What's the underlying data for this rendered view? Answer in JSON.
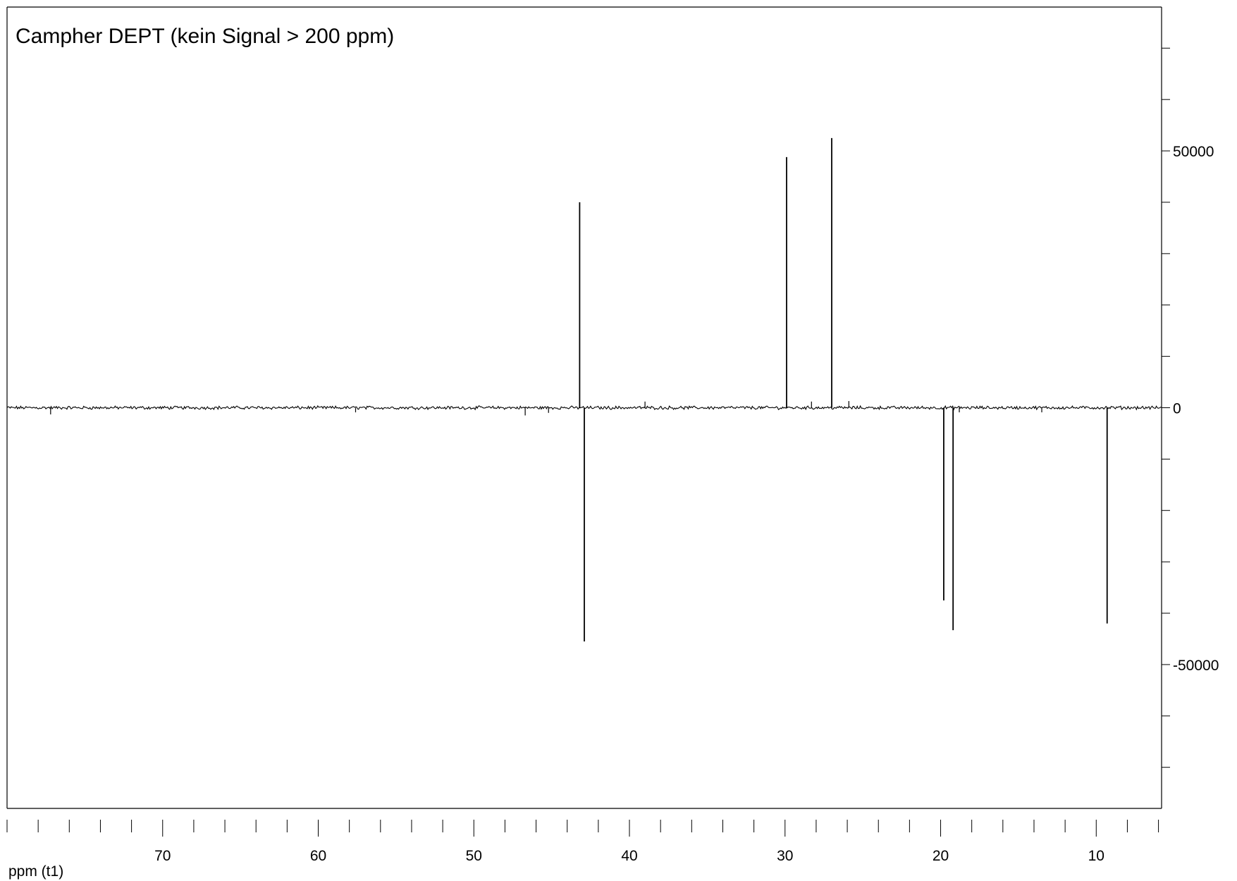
{
  "chart_data": {
    "type": "line",
    "title": "Campher DEPT (kein Signal > 200 ppm)",
    "xlabel": "ppm (t1)",
    "ylabel": "",
    "xlim": [
      80.0,
      5.8
    ],
    "x_reversed": true,
    "ylim": [
      -78000,
      78000
    ],
    "x_ticks": {
      "major_labels": [
        "70",
        "60",
        "50",
        "40",
        "30",
        "20",
        "10"
      ],
      "major_values": [
        70,
        60,
        50,
        40,
        30,
        20,
        10
      ],
      "minor_step": 2
    },
    "y_ticks": {
      "labels": [
        "50000",
        "0",
        "-50000"
      ],
      "values": [
        50000,
        0,
        -50000
      ],
      "minor_step": 10000
    },
    "grid": false,
    "legend": "none",
    "line_color": "#000000",
    "noise_level": 250,
    "series": [
      {
        "peaks": [
          {
            "ppm": 77.2,
            "intensity": -1300
          },
          {
            "ppm": 57.6,
            "intensity": -900
          },
          {
            "ppm": 46.7,
            "intensity": -1500
          },
          {
            "ppm": 45.2,
            "intensity": -1000
          },
          {
            "ppm": 43.2,
            "intensity": 40000
          },
          {
            "ppm": 42.9,
            "intensity": -45500
          },
          {
            "ppm": 39.0,
            "intensity": 1200
          },
          {
            "ppm": 29.9,
            "intensity": 48800
          },
          {
            "ppm": 28.3,
            "intensity": 1200
          },
          {
            "ppm": 27.0,
            "intensity": 52500
          },
          {
            "ppm": 25.9,
            "intensity": 1300
          },
          {
            "ppm": 19.8,
            "intensity": -37500
          },
          {
            "ppm": 19.2,
            "intensity": -43300
          },
          {
            "ppm": 18.8,
            "intensity": -900
          },
          {
            "ppm": 13.5,
            "intensity": -900
          },
          {
            "ppm": 9.3,
            "intensity": -42000
          }
        ]
      }
    ]
  }
}
